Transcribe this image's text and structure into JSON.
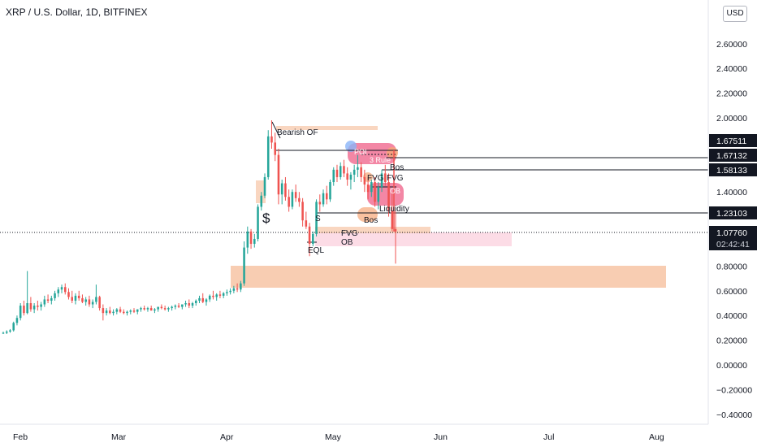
{
  "header": {
    "title": "XRP / U.S. Dollar, 1D, BITFINEX",
    "currency": "USD"
  },
  "chart_data": {
    "type": "candlestick",
    "y_axis": {
      "ticks": [
        "2.60000",
        "2.40000",
        "2.20000",
        "2.00000",
        "1.40000",
        "0.80000",
        "0.60000",
        "0.40000",
        "0.20000",
        "0.00000",
        "−0.20000",
        "−0.40000"
      ],
      "range": [
        -0.45,
        2.85
      ]
    },
    "x_axis": {
      "labels": [
        "Feb",
        "Mar",
        "Apr",
        "May",
        "Jun",
        "Jul",
        "Aug"
      ]
    },
    "price_labels": [
      {
        "value": "1.67511",
        "style": "dark"
      },
      {
        "value": "1.67132",
        "style": "dark"
      },
      {
        "value": "1.58133",
        "style": "dark"
      },
      {
        "value": "1.23103",
        "style": "dark"
      },
      {
        "value": "1.07760",
        "style": "current",
        "countdown": "02:42:41"
      }
    ],
    "annotations": [
      "Bearish OF",
      "$",
      "S",
      "EQL",
      "FVG",
      "OB",
      "Bos",
      "Liquidity",
      "POI",
      "3 Rule",
      "Bos",
      "FVG",
      "FVG",
      "OB"
    ],
    "colors": {
      "up": "#26a69a",
      "down": "#ef5350",
      "zone_orange": "#f7c4a5",
      "zone_pink": "#fbd3e0",
      "label_dark": "#131722"
    },
    "series_note": "daily XRP/USD candles, late Jan to late May",
    "ohlc": [
      [
        0.26,
        0.27,
        0.25,
        0.26
      ],
      [
        0.26,
        0.28,
        0.25,
        0.27
      ],
      [
        0.27,
        0.29,
        0.26,
        0.28
      ],
      [
        0.28,
        0.35,
        0.27,
        0.34
      ],
      [
        0.34,
        0.4,
        0.32,
        0.38
      ],
      [
        0.38,
        0.5,
        0.36,
        0.48
      ],
      [
        0.48,
        0.52,
        0.4,
        0.42
      ],
      [
        0.42,
        0.76,
        0.41,
        0.5
      ],
      [
        0.5,
        0.55,
        0.43,
        0.45
      ],
      [
        0.45,
        0.5,
        0.42,
        0.48
      ],
      [
        0.48,
        0.52,
        0.44,
        0.47
      ],
      [
        0.47,
        0.51,
        0.44,
        0.49
      ],
      [
        0.49,
        0.56,
        0.47,
        0.53
      ],
      [
        0.53,
        0.57,
        0.5,
        0.52
      ],
      [
        0.52,
        0.56,
        0.49,
        0.54
      ],
      [
        0.54,
        0.6,
        0.52,
        0.58
      ],
      [
        0.58,
        0.63,
        0.55,
        0.61
      ],
      [
        0.61,
        0.65,
        0.58,
        0.63
      ],
      [
        0.63,
        0.66,
        0.57,
        0.59
      ],
      [
        0.59,
        0.62,
        0.53,
        0.55
      ],
      [
        0.55,
        0.6,
        0.5,
        0.52
      ],
      [
        0.52,
        0.58,
        0.49,
        0.56
      ],
      [
        0.56,
        0.6,
        0.52,
        0.54
      ],
      [
        0.54,
        0.57,
        0.5,
        0.51
      ],
      [
        0.51,
        0.55,
        0.48,
        0.53
      ],
      [
        0.53,
        0.56,
        0.47,
        0.49
      ],
      [
        0.49,
        0.53,
        0.46,
        0.51
      ],
      [
        0.51,
        0.65,
        0.49,
        0.55
      ],
      [
        0.55,
        0.56,
        0.44,
        0.46
      ],
      [
        0.46,
        0.49,
        0.36,
        0.42
      ],
      [
        0.42,
        0.46,
        0.4,
        0.44
      ],
      [
        0.44,
        0.47,
        0.41,
        0.42
      ],
      [
        0.42,
        0.45,
        0.4,
        0.43
      ],
      [
        0.43,
        0.46,
        0.41,
        0.45
      ],
      [
        0.45,
        0.47,
        0.42,
        0.43
      ],
      [
        0.43,
        0.45,
        0.41,
        0.42
      ],
      [
        0.42,
        0.44,
        0.4,
        0.43
      ],
      [
        0.43,
        0.45,
        0.41,
        0.44
      ],
      [
        0.44,
        0.46,
        0.42,
        0.43
      ],
      [
        0.43,
        0.45,
        0.41,
        0.45
      ],
      [
        0.45,
        0.47,
        0.43,
        0.46
      ],
      [
        0.46,
        0.48,
        0.44,
        0.45
      ],
      [
        0.45,
        0.47,
        0.43,
        0.46
      ],
      [
        0.46,
        0.48,
        0.44,
        0.44
      ],
      [
        0.44,
        0.46,
        0.42,
        0.45
      ],
      [
        0.45,
        0.47,
        0.43,
        0.47
      ],
      [
        0.47,
        0.49,
        0.45,
        0.46
      ],
      [
        0.46,
        0.48,
        0.44,
        0.45
      ],
      [
        0.45,
        0.47,
        0.43,
        0.46
      ],
      [
        0.46,
        0.48,
        0.44,
        0.47
      ],
      [
        0.47,
        0.49,
        0.45,
        0.48
      ],
      [
        0.48,
        0.5,
        0.46,
        0.47
      ],
      [
        0.47,
        0.49,
        0.45,
        0.49
      ],
      [
        0.49,
        0.52,
        0.47,
        0.5
      ],
      [
        0.5,
        0.53,
        0.46,
        0.48
      ],
      [
        0.48,
        0.51,
        0.46,
        0.5
      ],
      [
        0.5,
        0.53,
        0.48,
        0.52
      ],
      [
        0.52,
        0.56,
        0.5,
        0.54
      ],
      [
        0.54,
        0.58,
        0.5,
        0.51
      ],
      [
        0.51,
        0.54,
        0.48,
        0.53
      ],
      [
        0.53,
        0.57,
        0.51,
        0.56
      ],
      [
        0.56,
        0.6,
        0.53,
        0.55
      ],
      [
        0.55,
        0.58,
        0.52,
        0.57
      ],
      [
        0.57,
        0.6,
        0.54,
        0.56
      ],
      [
        0.56,
        0.59,
        0.54,
        0.58
      ],
      [
        0.58,
        0.61,
        0.56,
        0.59
      ],
      [
        0.59,
        0.62,
        0.57,
        0.6
      ],
      [
        0.6,
        0.64,
        0.58,
        0.62
      ],
      [
        0.62,
        0.66,
        0.59,
        0.61
      ],
      [
        0.61,
        0.68,
        0.59,
        0.66
      ],
      [
        0.66,
        1.0,
        0.64,
        0.95
      ],
      [
        0.95,
        1.12,
        0.9,
        1.08
      ],
      [
        1.08,
        1.1,
        0.94,
        0.98
      ],
      [
        0.98,
        1.06,
        0.95,
        1.02
      ],
      [
        1.02,
        1.3,
        1.0,
        1.28
      ],
      [
        1.28,
        1.4,
        1.25,
        1.37
      ],
      [
        1.37,
        1.55,
        1.35,
        1.52
      ],
      [
        1.52,
        1.9,
        1.5,
        1.85
      ],
      [
        1.85,
        1.98,
        1.75,
        1.8
      ],
      [
        1.8,
        1.88,
        1.65,
        1.7
      ],
      [
        1.7,
        1.75,
        1.3,
        1.38
      ],
      [
        1.38,
        1.5,
        1.3,
        1.47
      ],
      [
        1.47,
        1.52,
        1.33,
        1.36
      ],
      [
        1.36,
        1.42,
        1.24,
        1.28
      ],
      [
        1.28,
        1.42,
        1.26,
        1.4
      ],
      [
        1.4,
        1.46,
        1.32,
        1.35
      ],
      [
        1.35,
        1.4,
        1.28,
        1.32
      ],
      [
        1.32,
        1.35,
        1.12,
        1.17
      ],
      [
        1.17,
        1.24,
        1.1,
        1.12
      ],
      [
        1.12,
        1.15,
        0.88,
        0.98
      ],
      [
        0.98,
        1.08,
        0.96,
        1.06
      ],
      [
        1.06,
        1.34,
        1.04,
        1.32
      ],
      [
        1.32,
        1.38,
        1.24,
        1.3
      ],
      [
        1.3,
        1.42,
        1.28,
        1.39
      ],
      [
        1.39,
        1.45,
        1.3,
        1.34
      ],
      [
        1.34,
        1.5,
        1.32,
        1.48
      ],
      [
        1.48,
        1.6,
        1.45,
        1.58
      ],
      [
        1.58,
        1.62,
        1.48,
        1.52
      ],
      [
        1.52,
        1.64,
        1.5,
        1.61
      ],
      [
        1.61,
        1.66,
        1.52,
        1.55
      ],
      [
        1.55,
        1.6,
        1.45,
        1.5
      ],
      [
        1.5,
        1.56,
        1.42,
        1.54
      ],
      [
        1.54,
        1.62,
        1.48,
        1.58
      ],
      [
        1.58,
        1.7,
        1.52,
        1.6
      ],
      [
        1.6,
        1.64,
        1.48,
        1.52
      ],
      [
        1.52,
        1.58,
        1.4,
        1.46
      ],
      [
        1.46,
        1.52,
        1.34,
        1.4
      ],
      [
        1.4,
        1.5,
        1.36,
        1.48
      ],
      [
        1.48,
        1.52,
        1.28,
        1.32
      ],
      [
        1.32,
        1.48,
        1.26,
        1.44
      ],
      [
        1.44,
        1.58,
        1.4,
        1.55
      ],
      [
        1.55,
        1.62,
        1.45,
        1.48
      ],
      [
        1.48,
        1.55,
        1.2,
        1.25
      ],
      [
        1.25,
        1.4,
        1.08,
        1.1
      ],
      [
        1.1,
        1.25,
        0.82,
        1.08
      ]
    ]
  }
}
